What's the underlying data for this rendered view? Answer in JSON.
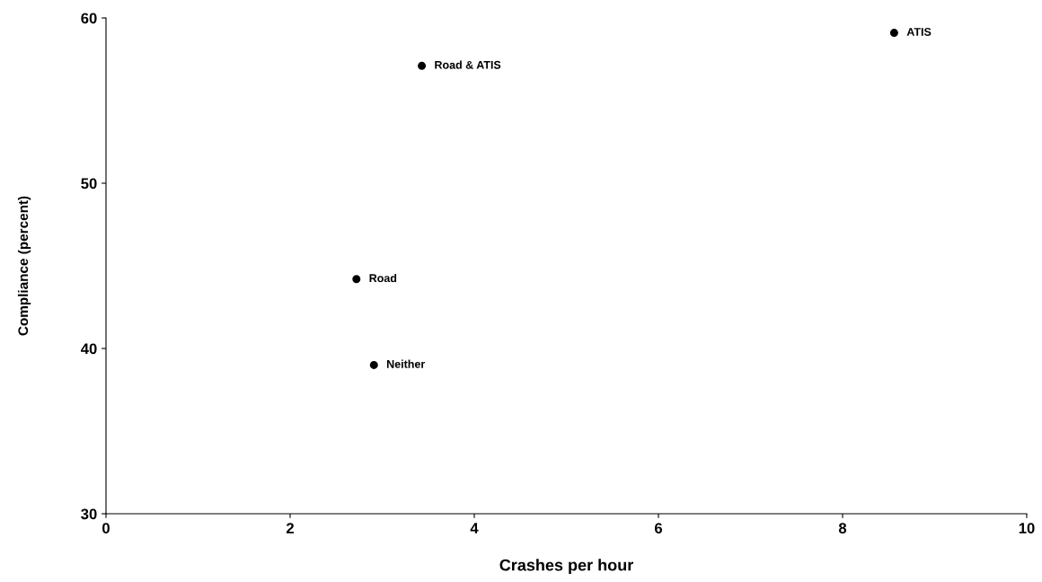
{
  "chart_data": {
    "type": "scatter",
    "xlabel": "Crashes per hour",
    "ylabel": "Compliance (percent)",
    "x": [
      3.43,
      8.56,
      2.72,
      2.91
    ],
    "series": [
      {
        "color": "#000000",
        "values": [
          57.1,
          59.1,
          44.2,
          39.0
        ]
      }
    ],
    "xlim": [
      0,
      10
    ],
    "xticks": [
      0,
      2,
      4,
      6,
      8,
      10
    ],
    "ylim": [
      30,
      60
    ],
    "yticks": [
      30,
      40,
      50,
      60
    ],
    "grid": false,
    "legend": false,
    "marker": "circle",
    "annotations": [
      {
        "text": "Road & ATIS",
        "x": 3.43,
        "y": 57.1
      },
      {
        "text": "ATIS",
        "x": 8.56,
        "y": 59.1
      },
      {
        "text": "Road",
        "x": 2.72,
        "y": 44.2
      },
      {
        "text": "Neither",
        "x": 2.91,
        "y": 39.0
      }
    ]
  }
}
